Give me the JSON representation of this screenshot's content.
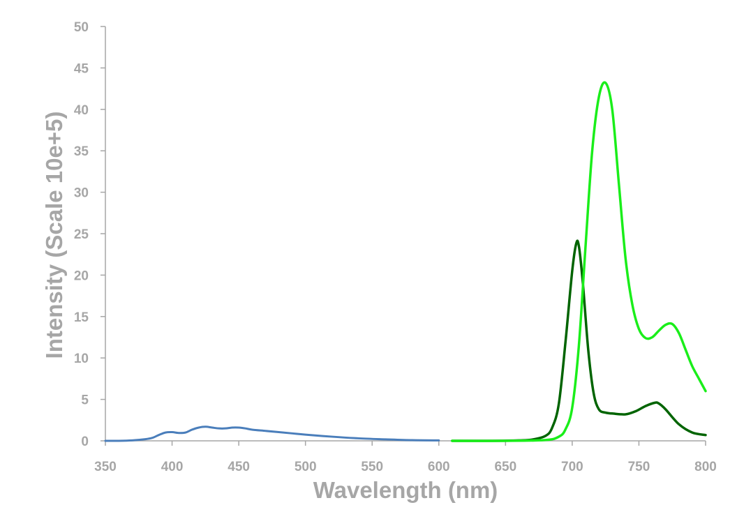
{
  "chart_data": {
    "type": "line",
    "xlabel": "Wavelength (nm)",
    "ylabel": "Intensity (Scale 10e+5)",
    "xlim": [
      350,
      800
    ],
    "ylim": [
      0,
      50
    ],
    "xticks": [
      350,
      400,
      450,
      500,
      550,
      600,
      650,
      700,
      750,
      800
    ],
    "yticks": [
      0,
      5,
      10,
      15,
      20,
      25,
      30,
      35,
      40,
      45,
      50
    ],
    "grid": false,
    "legend": "none",
    "colors": {
      "axis": "#a6a6a6",
      "text": "#a6a6a6"
    },
    "series": [
      {
        "color": "#4a7ebb",
        "x": [
          350,
          360,
          370,
          380,
          385,
          390,
          395,
          400,
          405,
          410,
          415,
          420,
          425,
          430,
          435,
          440,
          445,
          450,
          455,
          460,
          470,
          480,
          490,
          500,
          520,
          540,
          560,
          580,
          600
        ],
        "y": [
          0,
          0,
          0.05,
          0.2,
          0.35,
          0.7,
          1.0,
          1.05,
          0.95,
          1.0,
          1.35,
          1.6,
          1.7,
          1.6,
          1.5,
          1.5,
          1.6,
          1.6,
          1.5,
          1.35,
          1.2,
          1.05,
          0.9,
          0.75,
          0.5,
          0.3,
          0.18,
          0.08,
          0.05
        ]
      },
      {
        "color": "#006400",
        "x": [
          610,
          640,
          660,
          670,
          680,
          685,
          690,
          695,
          700,
          703,
          705,
          708,
          712,
          716,
          720,
          725,
          730,
          740,
          748,
          755,
          762,
          765,
          770,
          780,
          790,
          800
        ],
        "y": [
          0,
          0,
          0.05,
          0.15,
          0.6,
          1.6,
          4.5,
          12.0,
          20.5,
          23.8,
          23.5,
          19.0,
          11.0,
          5.8,
          3.8,
          3.4,
          3.3,
          3.2,
          3.6,
          4.2,
          4.6,
          4.5,
          3.8,
          2.0,
          1.0,
          0.7
        ]
      },
      {
        "color": "#1aee1a",
        "x": [
          610,
          650,
          680,
          690,
          695,
          700,
          705,
          710,
          715,
          720,
          725,
          730,
          735,
          740,
          745,
          750,
          755,
          760,
          765,
          770,
          775,
          780,
          785,
          790,
          795,
          800
        ],
        "y": [
          0,
          0,
          0.1,
          0.5,
          1.4,
          4.0,
          11.5,
          23.5,
          35.0,
          41.5,
          43.2,
          40.0,
          31.0,
          22.0,
          16.5,
          13.5,
          12.4,
          12.5,
          13.3,
          14.0,
          14.1,
          13.0,
          11.0,
          9.0,
          7.5,
          6.0
        ]
      }
    ]
  }
}
